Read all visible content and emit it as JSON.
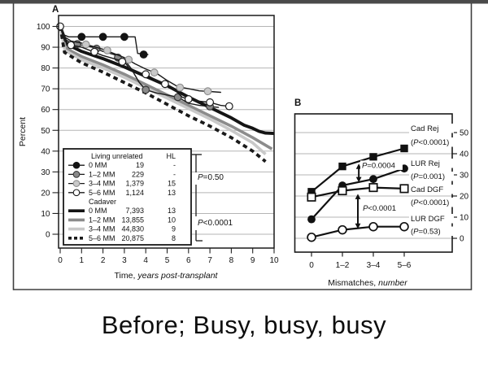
{
  "slide": {
    "caption": "Before; Busy, busy, busy"
  },
  "figure": {
    "top_bar_color": "#4a4a4a",
    "frame_color": "#3f3f3f",
    "grid_color": "#b5b5b5",
    "panel_a": {
      "label": "A",
      "ylabel": "Percent",
      "xlabel_prefix": "Time,",
      "xlabel_italic": "years post-transplant",
      "legend": {
        "group1": "Living unrelated",
        "col": "HL",
        "group2": "Cadaver"
      }
    },
    "panel_b": {
      "label": "B",
      "xlabel_prefix": "Mismatches,",
      "xlabel_italic": "number"
    }
  },
  "chart_data": [
    {
      "panel": "A",
      "type": "line",
      "title": "",
      "xlabel": "Time, years post-transplant",
      "ylabel": "Percent",
      "xlim": [
        0,
        10
      ],
      "ylim": [
        0,
        100
      ],
      "x_ticks": [
        0,
        1,
        2,
        3,
        4,
        5,
        6,
        7,
        8,
        9,
        10
      ],
      "y_ticks": [
        0,
        10,
        20,
        30,
        40,
        50,
        60,
        70,
        80,
        90,
        100
      ],
      "grid": "horizontal",
      "legend_position": "lower-left",
      "pvalues": {
        "living": "P=0.50",
        "cadaver": "P<0.0001"
      },
      "series": [
        {
          "id": "lur0",
          "group": "Living unrelated",
          "label": "0 MM",
          "n": "19",
          "hl": "-",
          "style": "thin-marker",
          "marker_fill": "#141414",
          "marker_stroke": "#141414",
          "points": [
            [
              0,
              100
            ],
            [
              0.15,
              96
            ],
            [
              0.4,
              95
            ],
            [
              3.5,
              95
            ],
            [
              3.62,
              87
            ],
            [
              4.1,
              86.5
            ]
          ],
          "markers": [
            [
              1,
              95
            ],
            [
              2,
              95
            ],
            [
              3,
              95
            ],
            [
              3.9,
              86.5
            ]
          ]
        },
        {
          "id": "lur12",
          "group": "Living unrelated",
          "label": "1–2 MM",
          "n": "229",
          "hl": "-",
          "style": "thin-marker",
          "marker_fill": "#8a8a8a",
          "marker_stroke": "#3a3a3a",
          "points": [
            [
              0,
              100
            ],
            [
              0.2,
              94
            ],
            [
              0.5,
              92
            ],
            [
              1,
              91
            ],
            [
              1.5,
              90
            ],
            [
              2,
              88
            ],
            [
              2.5,
              86.5
            ],
            [
              3,
              84
            ],
            [
              3.3,
              80
            ],
            [
              3.7,
              73
            ],
            [
              4,
              69.5
            ],
            [
              4.5,
              68
            ],
            [
              5,
              67
            ],
            [
              5.5,
              66
            ],
            [
              6,
              63
            ],
            [
              6.5,
              62
            ],
            [
              7,
              61.5
            ],
            [
              7.4,
              61
            ]
          ],
          "markers": [
            [
              0.8,
              91.5
            ],
            [
              1.7,
              89.3
            ],
            [
              2.7,
              85
            ],
            [
              4,
              69.5
            ],
            [
              5.5,
              66
            ],
            [
              7,
              61.5
            ]
          ]
        },
        {
          "id": "lur34",
          "group": "Living unrelated",
          "label": "3–4 MM",
          "n": "1,379",
          "hl": "15",
          "style": "thin-marker",
          "marker_fill": "#c9c9c9",
          "marker_stroke": "#8f8f8f",
          "points": [
            [
              0,
              100
            ],
            [
              0.2,
              95
            ],
            [
              0.5,
              93
            ],
            [
              1,
              92
            ],
            [
              1.5,
              90.5
            ],
            [
              2,
              89
            ],
            [
              2.5,
              87
            ],
            [
              3,
              85
            ],
            [
              3.5,
              82
            ],
            [
              4,
              79.5
            ],
            [
              4.5,
              77.5
            ],
            [
              5,
              74
            ],
            [
              5.5,
              71
            ],
            [
              6,
              70
            ],
            [
              6.5,
              69
            ],
            [
              7,
              68.7
            ],
            [
              7.5,
              68.3
            ]
          ],
          "markers": [
            [
              1.2,
              91.3
            ],
            [
              2.2,
              88.5
            ],
            [
              3.2,
              84
            ],
            [
              4.4,
              77.8
            ],
            [
              5.6,
              70.6
            ],
            [
              6.9,
              68.8
            ]
          ]
        },
        {
          "id": "lur56",
          "group": "Living unrelated",
          "label": "5–6 MM",
          "n": "1,124",
          "hl": "13",
          "style": "thin-marker",
          "marker_fill": "#ffffff",
          "marker_stroke": "#1a1a1a",
          "points": [
            [
              0,
              100
            ],
            [
              0.2,
              93
            ],
            [
              0.5,
              91
            ],
            [
              1,
              90
            ],
            [
              1.5,
              88
            ],
            [
              2,
              86
            ],
            [
              2.5,
              84.5
            ],
            [
              3,
              83
            ],
            [
              3.3,
              79
            ],
            [
              3.6,
              78
            ],
            [
              4,
              77
            ],
            [
              4.5,
              74
            ],
            [
              5,
              72
            ],
            [
              5.3,
              70
            ],
            [
              5.7,
              66
            ],
            [
              6,
              65
            ],
            [
              6.5,
              64
            ],
            [
              7,
              63.5
            ],
            [
              7.5,
              62
            ],
            [
              8,
              61.5
            ]
          ],
          "markers": [
            [
              0,
              100
            ],
            [
              0.5,
              91
            ],
            [
              1.6,
              87.8
            ],
            [
              2.9,
              83
            ],
            [
              4,
              77
            ],
            [
              4.9,
              72.3
            ],
            [
              6,
              65
            ],
            [
              7,
              63.5
            ],
            [
              7.9,
              61.6
            ]
          ]
        },
        {
          "id": "cad0",
          "group": "Cadaver",
          "label": "0 MM",
          "n": "7,393",
          "hl": "13",
          "style": "thick",
          "color": "#141414",
          "points": [
            [
              0,
              100
            ],
            [
              0.3,
              91.5
            ],
            [
              1,
              88
            ],
            [
              2,
              84.5
            ],
            [
              3,
              80.5
            ],
            [
              4,
              76
            ],
            [
              5,
              71.5
            ],
            [
              6,
              66
            ],
            [
              7,
              61
            ],
            [
              8,
              56
            ],
            [
              8.6,
              52.5
            ],
            [
              9,
              51
            ],
            [
              9.3,
              49.5
            ],
            [
              9.6,
              48.7
            ],
            [
              10,
              48.5
            ]
          ]
        },
        {
          "id": "cad12",
          "group": "Cadaver",
          "label": "1–2 MM",
          "n": "13,855",
          "hl": "10",
          "style": "thick",
          "color": "#8c8c8c",
          "points": [
            [
              0,
              100
            ],
            [
              0.25,
              89.5
            ],
            [
              1,
              85.5
            ],
            [
              2,
              81.5
            ],
            [
              3,
              77
            ],
            [
              4,
              72
            ],
            [
              5,
              67
            ],
            [
              6,
              62
            ],
            [
              7,
              57
            ],
            [
              8,
              52
            ],
            [
              9,
              46.5
            ],
            [
              9.9,
              41
            ]
          ]
        },
        {
          "id": "cad34",
          "group": "Cadaver",
          "label": "3–4 MM",
          "n": "44,830",
          "hl": "9",
          "style": "thick",
          "color": "#c9c9c9",
          "points": [
            [
              0,
              100
            ],
            [
              0.22,
              88.5
            ],
            [
              1,
              84
            ],
            [
              2,
              80
            ],
            [
              3,
              75.5
            ],
            [
              4,
              70.5
            ],
            [
              5,
              65.5
            ],
            [
              6,
              60.5
            ],
            [
              7,
              55.5
            ],
            [
              8,
              50
            ],
            [
              9,
              44
            ],
            [
              9.6,
              38.5
            ]
          ]
        },
        {
          "id": "cad56",
          "group": "Cadaver",
          "label": "5–6 MM",
          "n": "20,875",
          "hl": "8",
          "style": "thick-dashed",
          "color": "#1a1a1a",
          "points": [
            [
              0,
              100
            ],
            [
              0.2,
              87.5
            ],
            [
              1,
              82.5
            ],
            [
              2,
              78
            ],
            [
              3,
              73
            ],
            [
              4,
              68
            ],
            [
              5,
              62.5
            ],
            [
              6,
              57
            ],
            [
              7,
              52
            ],
            [
              8,
              46.5
            ],
            [
              9,
              40
            ],
            [
              9.6,
              35
            ]
          ]
        }
      ]
    },
    {
      "panel": "B",
      "type": "line",
      "title": "",
      "xlabel": "Mismatches, number",
      "ylabel": "",
      "categories": [
        "0",
        "1–2",
        "3–4",
        "5–6"
      ],
      "y_ticks": [
        0,
        10,
        20,
        30,
        40,
        50
      ],
      "ylim": [
        0,
        58
      ],
      "grid": "horizontal",
      "series": [
        {
          "id": "cadrej",
          "name": "Cad Rej",
          "p": "(P<0.0001)",
          "marker": "square-filled",
          "values": [
            22,
            34,
            38.5,
            42.5
          ]
        },
        {
          "id": "lurrej",
          "name": "LUR Rej",
          "p": "(P=0.001)",
          "marker": "circle-filled",
          "values": [
            9,
            25,
            28,
            33
          ]
        },
        {
          "id": "caddgf",
          "name": "Cad DGF",
          "p": "(P<0.0001)",
          "marker": "square-open",
          "values": [
            19.5,
            22.5,
            24,
            23.5
          ]
        },
        {
          "id": "lurdgf",
          "name": "LUR DGF",
          "p": "(P=0.53)",
          "marker": "circle-open",
          "values": [
            0.5,
            4,
            5.5,
            5.5
          ]
        }
      ],
      "annotations": [
        {
          "text": "P=0.0004",
          "x": 1.53,
          "v_from": 35.3,
          "v_to": 26.5,
          "text_x": 1.63,
          "text_v": 33.3
        },
        {
          "text": "P<0.0001",
          "x": 1.5,
          "v_from": 21.0,
          "v_to": 4.5,
          "text_x": 1.66,
          "text_v": 13.1
        }
      ]
    }
  ]
}
